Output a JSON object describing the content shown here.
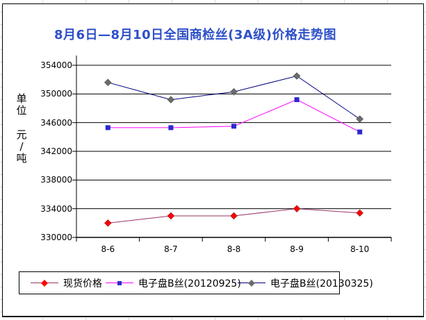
{
  "title": {
    "text": "8月6日—8月10日全国商检丝(3A级)价格走势图",
    "color": "#2E50C8"
  },
  "y_axis_title": {
    "group1": "单位",
    "group2": "元/吨"
  },
  "chart_data": {
    "type": "line",
    "title": "8月6日—8月10日全国商检丝(3A级)价格走势图",
    "xlabel": "",
    "ylabel": "单位 元/吨",
    "categories": [
      "8-6",
      "8-7",
      "8-8",
      "8-9",
      "8-10"
    ],
    "series": [
      {
        "name": "现货价格",
        "values": [
          332000,
          333000,
          333000,
          334000,
          333400
        ],
        "line_color": "#993366",
        "marker_color": "#FF0000",
        "marker": "diamond"
      },
      {
        "name": "电子盘B丝(20120925)",
        "values": [
          345300,
          345300,
          345500,
          349200,
          344700
        ],
        "line_color": "#FF00FF",
        "marker_color": "#2A2ACC",
        "marker": "square"
      },
      {
        "name": "电子盘B丝(20130325)",
        "values": [
          351600,
          349200,
          350300,
          352500,
          346500
        ],
        "line_color": "#000080",
        "marker_color": "#6B6B6B",
        "marker": "diamond"
      }
    ],
    "ylim": [
      330000,
      354000
    ],
    "ytick_step": 4000,
    "yticks": [
      "354000",
      "350000",
      "346000",
      "342000",
      "338000",
      "334000",
      "330000"
    ],
    "grid": true,
    "gridline_color": "#000000",
    "legend_position": "bottom"
  }
}
